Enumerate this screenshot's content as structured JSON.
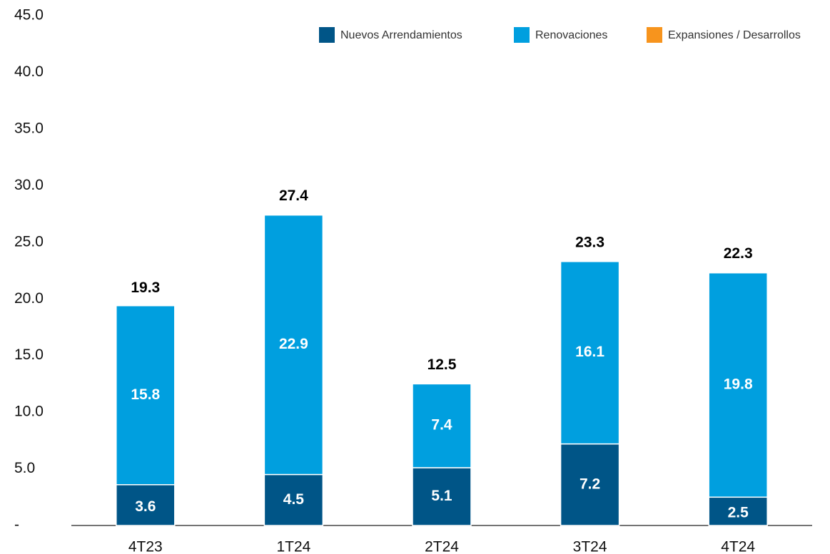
{
  "chart_data": {
    "type": "stacked_bar",
    "categories": [
      "4T23",
      "1T24",
      "2T24",
      "3T24",
      "4T24"
    ],
    "series": [
      {
        "name": "Nuevos Arrendamientos",
        "color": "#005587",
        "values": [
          3.6,
          4.5,
          5.1,
          7.2,
          2.5
        ]
      },
      {
        "name": "Renovaciones",
        "color": "#009fdf",
        "values": [
          15.8,
          22.9,
          7.4,
          16.1,
          19.8
        ]
      },
      {
        "name": "Expansiones / Desarrollos",
        "color": "#f7941d",
        "values": [
          0,
          0,
          0,
          0,
          0
        ]
      }
    ],
    "totals": [
      19.3,
      27.4,
      12.5,
      23.3,
      22.3
    ],
    "ylim": [
      0,
      45
    ],
    "yticks": [
      {
        "value": 0,
        "label": "-"
      },
      {
        "value": 5,
        "label": "5.0"
      },
      {
        "value": 10,
        "label": "10.0"
      },
      {
        "value": 15,
        "label": "15.0"
      },
      {
        "value": 20,
        "label": "20.0"
      },
      {
        "value": 25,
        "label": "25.0"
      },
      {
        "value": 30,
        "label": "30.0"
      },
      {
        "value": 35,
        "label": "35.0"
      },
      {
        "value": 40,
        "label": "40.0"
      },
      {
        "value": 45,
        "label": "45.0"
      }
    ],
    "legend": "top-right"
  }
}
